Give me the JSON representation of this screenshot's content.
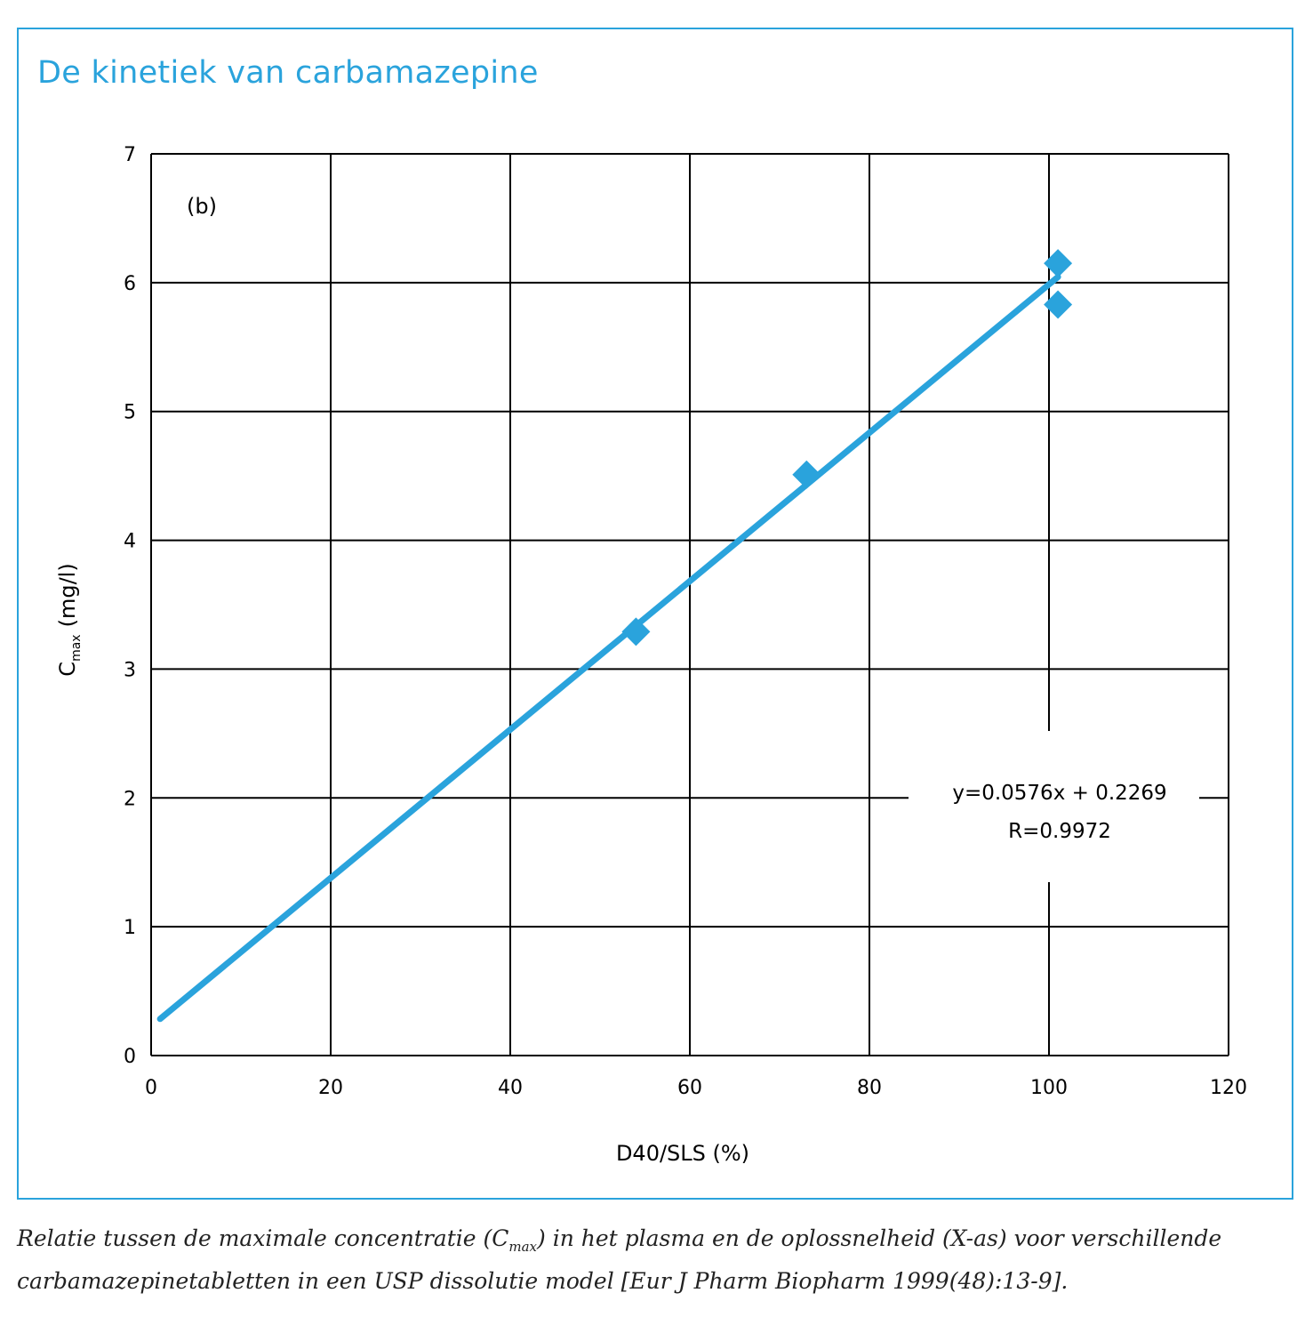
{
  "title": "De kinetiek van carbamazepine",
  "colors": {
    "accent": "#2aa3dc",
    "grid": "#000000"
  },
  "chart_data": {
    "type": "scatter",
    "panel_label": "(b)",
    "xlabel": "D40/SLS (%)",
    "ylabel": {
      "main": "C",
      "sub": "max",
      "unit": "(mg/l)"
    },
    "xlim": [
      0,
      120
    ],
    "ylim": [
      0,
      7
    ],
    "xticks": [
      0,
      20,
      40,
      60,
      80,
      100,
      120
    ],
    "yticks": [
      0,
      1,
      2,
      3,
      4,
      5,
      6,
      7
    ],
    "grid": true,
    "points": [
      {
        "x": 54,
        "y": 3.29
      },
      {
        "x": 73,
        "y": 4.51
      },
      {
        "x": 101,
        "y": 6.15
      },
      {
        "x": 101,
        "y": 5.83
      }
    ],
    "trendline": {
      "slope": 0.0576,
      "intercept": 0.2269,
      "x_range": [
        1,
        101
      ]
    },
    "annotation": {
      "equation": "y=0.0576x + 0.2269",
      "r_value": "R=0.9972"
    }
  },
  "caption": {
    "line1_pre": "Relatie tussen de maximale concentratie (C",
    "line1_sub": "max",
    "line1_post": ") in het plasma en de oplossnelheid (X-as) voor verschillende",
    "line2": "carbamazepinetabletten in een USP dissolutie model [Eur J Pharm Biopharm 1999(48):13-9]."
  }
}
